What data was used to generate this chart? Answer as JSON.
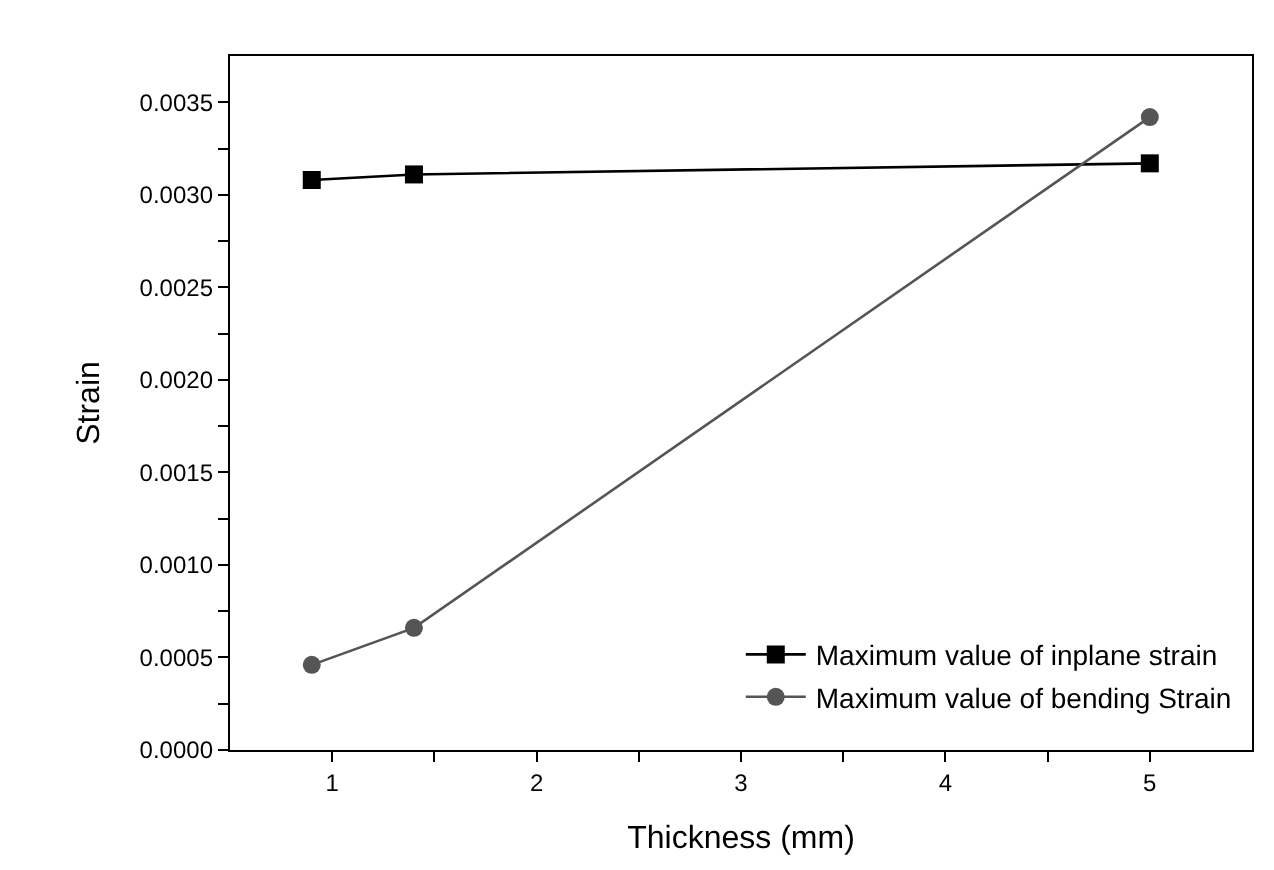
{
  "chart_data": {
    "type": "line",
    "xlabel": "Thickness (mm)",
    "ylabel": "Strain",
    "x": [
      0.9,
      1.4,
      5
    ],
    "series": [
      {
        "name": "Maximum value of inplane strain",
        "color": "#000000",
        "marker": "square",
        "values": [
          0.00308,
          0.00311,
          0.00317
        ]
      },
      {
        "name": "Maximum value of bending Strain",
        "color": "#555555",
        "marker": "circle",
        "values": [
          0.00046,
          0.00066,
          0.00342
        ]
      }
    ],
    "xlim": [
      0.5,
      5.5
    ],
    "xticks": [
      1,
      {
        "value": 1.5,
        "label": null
      },
      2,
      {
        "value": 2.5,
        "label": null
      },
      3,
      {
        "value": 3.5,
        "label": null
      },
      4,
      {
        "value": 4.5,
        "label": null
      },
      5
    ],
    "ylim": [
      0,
      0.00375
    ],
    "yticks": [
      "0.0000",
      {
        "value": 0.00025,
        "label": null
      },
      {
        "value": 0.0005,
        "label": "0.0005"
      },
      {
        "value": 0.00075,
        "label": null
      },
      {
        "value": 0.001,
        "label": "0.0010"
      },
      {
        "value": 0.00125,
        "label": null
      },
      {
        "value": 0.0015,
        "label": "0.0015"
      },
      {
        "value": 0.00175,
        "label": null
      },
      {
        "value": 0.002,
        "label": "0.0020"
      },
      {
        "value": 0.00225,
        "label": null
      },
      {
        "value": 0.0025,
        "label": "0.0025"
      },
      {
        "value": 0.00275,
        "label": null
      },
      {
        "value": 0.003,
        "label": "0.0030"
      },
      {
        "value": 0.00325,
        "label": null
      },
      {
        "value": 0.0035,
        "label": "0.0035"
      }
    ],
    "legend": "bottom right",
    "line_style": "solid"
  }
}
